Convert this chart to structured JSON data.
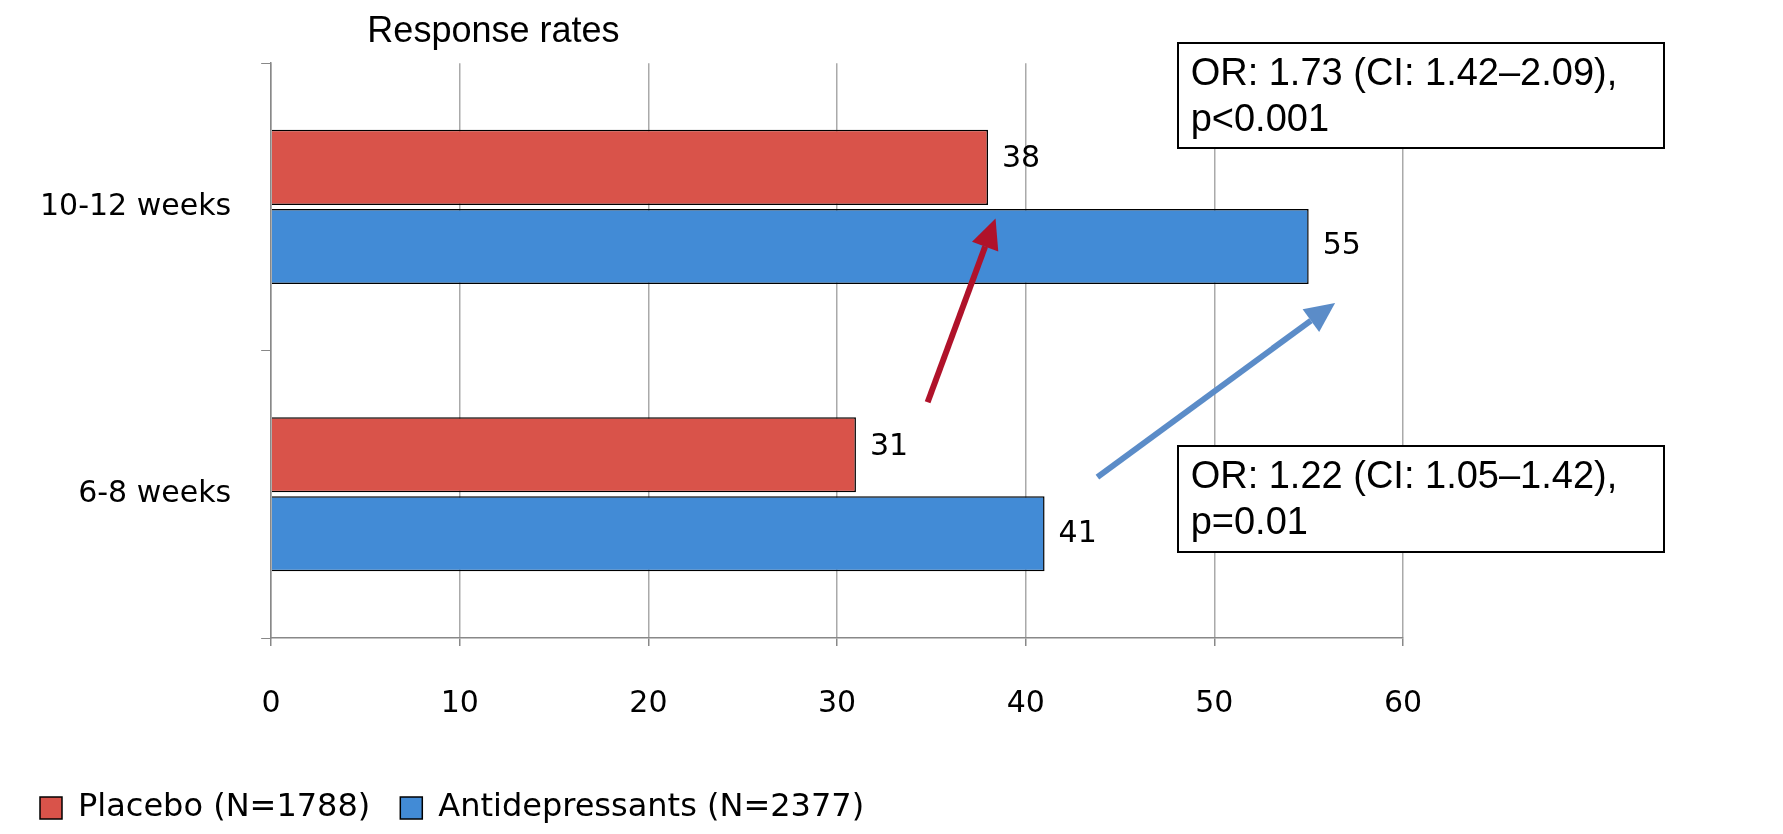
{
  "chart_data": {
    "type": "bar",
    "orientation": "horizontal",
    "title": "Response rates",
    "categories": [
      "10-12 weeks",
      "6-8 weeks"
    ],
    "series": [
      {
        "name": "Placebo (N=1788)",
        "color": "#d9534a",
        "values": [
          38,
          31
        ]
      },
      {
        "name": "Antidepressants (N=2377)",
        "color": "#428bd6",
        "values": [
          55,
          41
        ]
      }
    ],
    "xlim": [
      0,
      60
    ],
    "xticks": [
      0,
      10,
      20,
      30,
      40,
      50,
      60
    ],
    "grid": "x",
    "legend": "bottom",
    "data_labels": true,
    "annotations": [
      "OR: 1.73 (CI: 1.42–2.09), p<0.001",
      "OR: 1.22 (CI: 1.05–1.42), p=0.01"
    ]
  }
}
